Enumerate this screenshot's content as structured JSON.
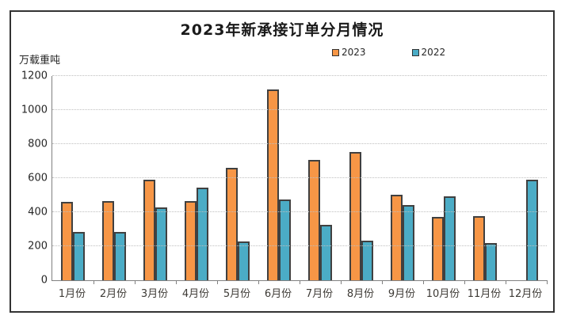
{
  "chart_data": {
    "type": "bar",
    "title": "2023年新承接订单分月情况",
    "ylabel": "万载重吨",
    "xlabel": "",
    "ylim": [
      0,
      1200
    ],
    "yticks": [
      0,
      200,
      400,
      600,
      800,
      1000,
      1200
    ],
    "grid": true,
    "legend_position": "top",
    "categories": [
      "1月份",
      "2月份",
      "3月份",
      "4月份",
      "5月份",
      "6月份",
      "7月份",
      "8月份",
      "9月份",
      "10月份",
      "11月份",
      "12月份"
    ],
    "series": [
      {
        "name": "2023",
        "color": "#F79646",
        "values": [
          462,
          463,
          593,
          467,
          660,
          1122,
          709,
          755,
          502,
          373,
          379,
          null
        ]
      },
      {
        "name": "2022",
        "color": "#4BACC6",
        "values": [
          282,
          283,
          430,
          545,
          230,
          476,
          326,
          231,
          440,
          492,
          218,
          593
        ]
      }
    ],
    "bar_border_color": "#404040",
    "gridline_color": "#bfbfbf",
    "axis_color": "#808080"
  }
}
